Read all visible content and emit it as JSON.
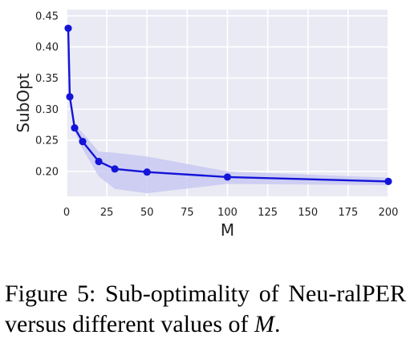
{
  "chart_data": {
    "type": "line",
    "xlabel": "M",
    "ylabel": "SubOpt",
    "xlim": [
      0,
      200
    ],
    "ylim": [
      0.16,
      0.46
    ],
    "xticks": [
      0,
      25,
      50,
      75,
      100,
      125,
      150,
      175,
      200
    ],
    "yticks": [
      0.2,
      0.25,
      0.3,
      0.35,
      0.4,
      0.45
    ],
    "x_tick_labels": [
      "0",
      "25",
      "50",
      "75",
      "100",
      "125",
      "150",
      "175",
      "200"
    ],
    "y_tick_labels": [
      "0.20",
      "0.25",
      "0.30",
      "0.35",
      "0.40",
      "0.45"
    ],
    "grid": true,
    "series": [
      {
        "x": [
          1,
          2,
          5,
          10,
          20,
          30,
          50,
          100,
          200
        ],
        "y": [
          0.43,
          0.32,
          0.27,
          0.248,
          0.216,
          0.204,
          0.199,
          0.191,
          0.184
        ],
        "lower": [
          0.43,
          0.318,
          0.265,
          0.236,
          0.192,
          0.172,
          0.165,
          0.18,
          0.178
        ],
        "upper": [
          0.43,
          0.322,
          0.275,
          0.262,
          0.232,
          0.23,
          0.224,
          0.2,
          0.19
        ]
      }
    ],
    "colors": {
      "line": "#1414d8",
      "band": "#c9c9f2",
      "plot_bg": "#eaeaf4",
      "grid": "#ffffff"
    }
  },
  "caption": {
    "prefix": "Figure 5:  Sub-optimality of Neu-ralPER versus different values of ",
    "math": "M",
    "suffix": "."
  }
}
